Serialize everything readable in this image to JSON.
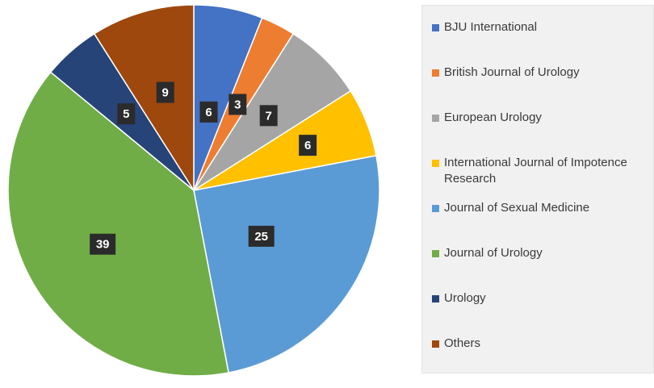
{
  "chart_data": {
    "type": "pie",
    "title": "",
    "categories": [
      "BJU International",
      "British Journal of Urology",
      "European Urology",
      "International Journal of Impotence Research",
      "Journal of Sexual Medicine",
      "Journal of Urology",
      "Urology",
      "Others"
    ],
    "values": [
      6,
      3,
      7,
      6,
      25,
      39,
      5,
      9
    ],
    "colors": [
      "#4472c4",
      "#ed7d31",
      "#a5a5a5",
      "#ffc000",
      "#5b9bd5",
      "#70ad47",
      "#264478",
      "#9e480e"
    ],
    "start_angle_deg": 0,
    "direction": "clockwise",
    "legend_position": "right",
    "data_labels": true
  }
}
